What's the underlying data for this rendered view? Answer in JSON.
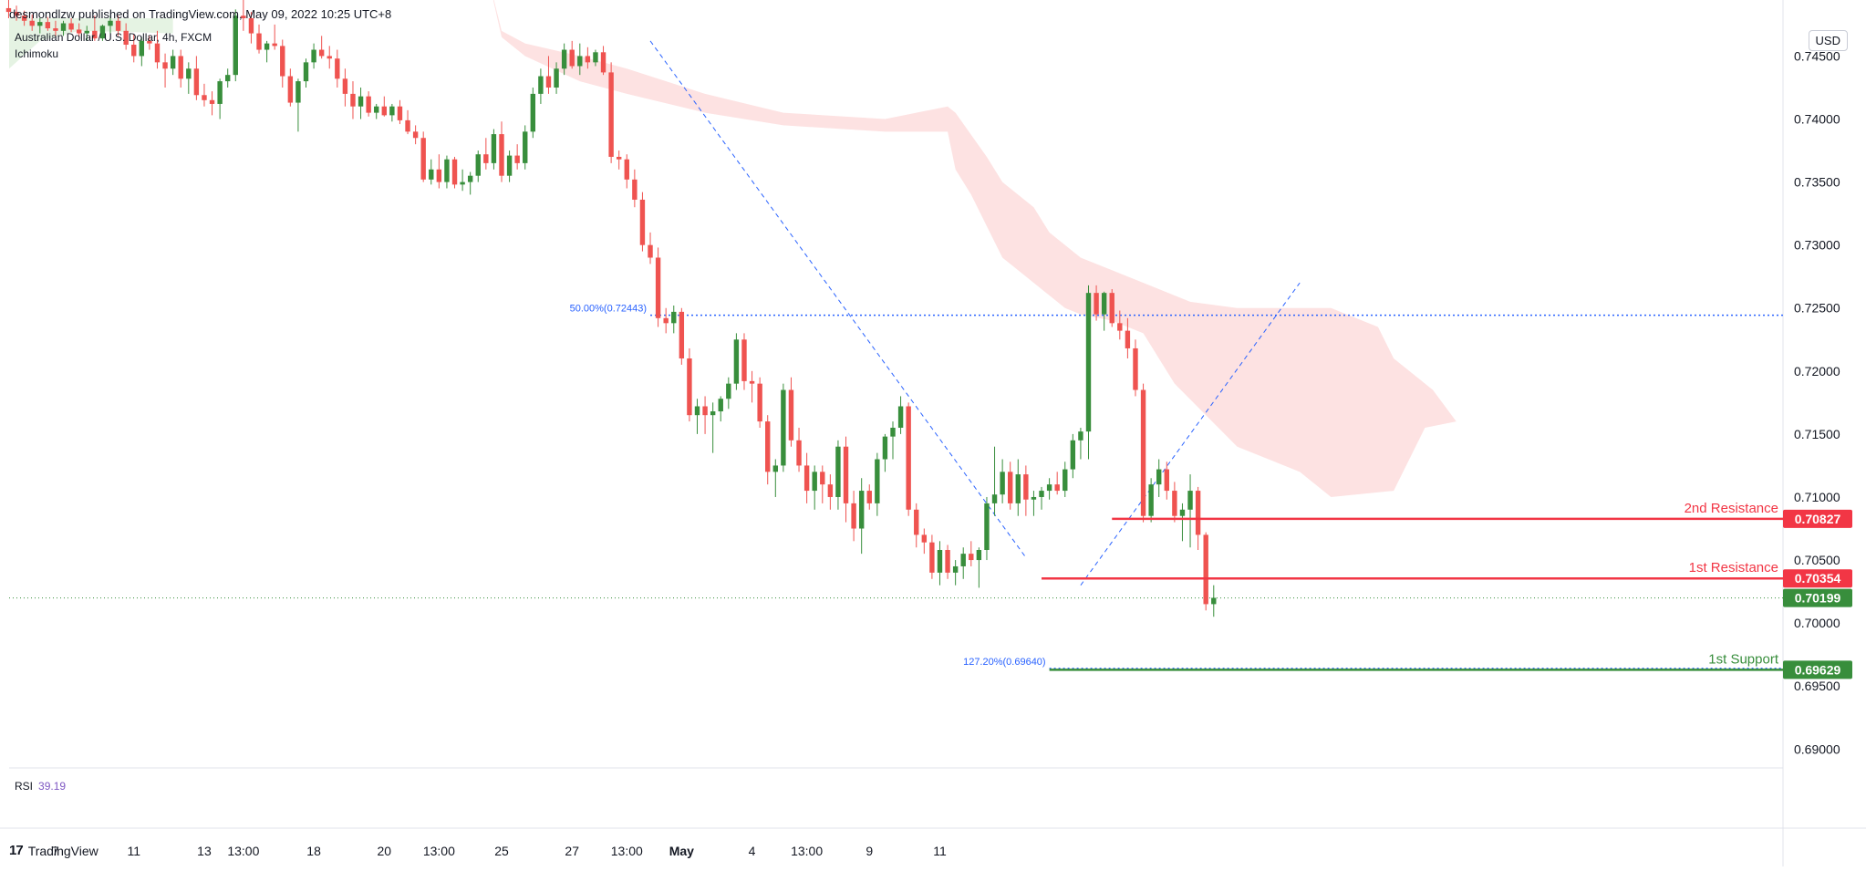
{
  "header": {
    "publisher": "desmondlzw published on TradingView.com, May 09, 2022 10:25 UTC+8"
  },
  "legend": {
    "symbol": "Australian Dollar / U.S. Dollar, 4h, FXCM",
    "indicator": "Ichimoku"
  },
  "rsi": {
    "label": "RSI",
    "value": "39.19"
  },
  "currency": "USD",
  "brand": {
    "logo": "17",
    "name": "TradingView"
  },
  "colors": {
    "bull": "#388e3c",
    "bear": "#ef5350",
    "cloud_bear": "#fde2e2",
    "cloud_bull": "#e5f3e3",
    "fib": "#2962ff",
    "resistance": "#f23645",
    "support": "#388e3c"
  },
  "chart_data": {
    "type": "candlestick",
    "title": "",
    "y_ticks": [
      "0.74500",
      "0.74000",
      "0.73500",
      "0.73000",
      "0.72500",
      "0.72000",
      "0.71500",
      "0.71000",
      "0.70500",
      "0.70000",
      "0.69500",
      "0.69000"
    ],
    "ylim": [
      0.6885,
      0.748
    ],
    "x_ticks": [
      {
        "label": "7",
        "i": 7
      },
      {
        "label": "11",
        "i": 17
      },
      {
        "label": "13",
        "i": 26
      },
      {
        "label": "13:00",
        "i": 31
      },
      {
        "label": "18",
        "i": 40
      },
      {
        "label": "20",
        "i": 49
      },
      {
        "label": "13:00",
        "i": 56
      },
      {
        "label": "25",
        "i": 64
      },
      {
        "label": "27",
        "i": 73
      },
      {
        "label": "13:00",
        "i": 80
      },
      {
        "label": "May",
        "i": 87
      },
      {
        "label": "4",
        "i": 96
      },
      {
        "label": "13:00",
        "i": 103
      },
      {
        "label": "9",
        "i": 111
      },
      {
        "label": "11",
        "i": 120
      }
    ],
    "candles": [
      [
        0.749,
        0.75,
        0.7482,
        0.7488
      ],
      [
        0.7488,
        0.7495,
        0.748,
        0.7485
      ],
      [
        0.7485,
        0.749,
        0.7478,
        0.7482
      ],
      [
        0.7482,
        0.7486,
        0.7474,
        0.7478
      ],
      [
        0.7478,
        0.7483,
        0.747,
        0.7474
      ],
      [
        0.7474,
        0.748,
        0.7468,
        0.7477
      ],
      [
        0.7477,
        0.7481,
        0.747,
        0.7472
      ],
      [
        0.7472,
        0.7478,
        0.7465,
        0.747
      ],
      [
        0.747,
        0.7478,
        0.7466,
        0.7476
      ],
      [
        0.7476,
        0.748,
        0.7469,
        0.7471
      ],
      [
        0.7471,
        0.7476,
        0.7465,
        0.7468
      ],
      [
        0.7468,
        0.7474,
        0.7462,
        0.747
      ],
      [
        0.747,
        0.7482,
        0.7462,
        0.7464
      ],
      [
        0.7464,
        0.7475,
        0.7462,
        0.7474
      ],
      [
        0.7474,
        0.7482,
        0.7468,
        0.7478
      ],
      [
        0.7478,
        0.7482,
        0.7466,
        0.747
      ],
      [
        0.747,
        0.7476,
        0.7455,
        0.7459
      ],
      [
        0.7459,
        0.7467,
        0.7445,
        0.745
      ],
      [
        0.745,
        0.7465,
        0.7442,
        0.7462
      ],
      [
        0.7462,
        0.7466,
        0.7455,
        0.746
      ],
      [
        0.746,
        0.747,
        0.744,
        0.7445
      ],
      [
        0.7445,
        0.7452,
        0.7425,
        0.744
      ],
      [
        0.744,
        0.7455,
        0.7435,
        0.745
      ],
      [
        0.745,
        0.7455,
        0.7425,
        0.7432
      ],
      [
        0.7432,
        0.7445,
        0.742,
        0.744
      ],
      [
        0.744,
        0.745,
        0.7415,
        0.7419
      ],
      [
        0.7419,
        0.7428,
        0.741,
        0.7415
      ],
      [
        0.7415,
        0.7422,
        0.7403,
        0.7412
      ],
      [
        0.7412,
        0.7432,
        0.74,
        0.743
      ],
      [
        0.743,
        0.744,
        0.7425,
        0.7435
      ],
      [
        0.7435,
        0.7487,
        0.743,
        0.7482
      ],
      [
        0.7482,
        0.75,
        0.747,
        0.748
      ],
      [
        0.748,
        0.7485,
        0.746,
        0.7468
      ],
      [
        0.7468,
        0.7475,
        0.7452,
        0.7455
      ],
      [
        0.7455,
        0.7462,
        0.7445,
        0.746
      ],
      [
        0.746,
        0.7475,
        0.7455,
        0.7458
      ],
      [
        0.7458,
        0.7463,
        0.7425,
        0.7434
      ],
      [
        0.7434,
        0.744,
        0.741,
        0.7413
      ],
      [
        0.7413,
        0.7432,
        0.739,
        0.743
      ],
      [
        0.743,
        0.7448,
        0.7425,
        0.7445
      ],
      [
        0.7445,
        0.746,
        0.744,
        0.7455
      ],
      [
        0.7455,
        0.7466,
        0.7448,
        0.745
      ],
      [
        0.745,
        0.7458,
        0.744,
        0.7448
      ],
      [
        0.7448,
        0.7455,
        0.7425,
        0.7432
      ],
      [
        0.7432,
        0.744,
        0.741,
        0.742
      ],
      [
        0.742,
        0.743,
        0.74,
        0.741
      ],
      [
        0.741,
        0.7425,
        0.74,
        0.7418
      ],
      [
        0.7418,
        0.7422,
        0.7402,
        0.7405
      ],
      [
        0.7405,
        0.7412,
        0.74,
        0.741
      ],
      [
        0.741,
        0.7418,
        0.7402,
        0.7403
      ],
      [
        0.7403,
        0.7412,
        0.7398,
        0.741
      ],
      [
        0.741,
        0.7415,
        0.7396,
        0.7399
      ],
      [
        0.7399,
        0.7407,
        0.7388,
        0.739
      ],
      [
        0.739,
        0.7395,
        0.738,
        0.7385
      ],
      [
        0.7385,
        0.739,
        0.735,
        0.7352
      ],
      [
        0.7352,
        0.7368,
        0.7348,
        0.736
      ],
      [
        0.736,
        0.7372,
        0.7345,
        0.735
      ],
      [
        0.735,
        0.7371,
        0.7345,
        0.7368
      ],
      [
        0.7368,
        0.737,
        0.7345,
        0.7348
      ],
      [
        0.7348,
        0.736,
        0.7343,
        0.735
      ],
      [
        0.735,
        0.7358,
        0.734,
        0.7355
      ],
      [
        0.7355,
        0.7375,
        0.735,
        0.7372
      ],
      [
        0.7372,
        0.7385,
        0.736,
        0.7365
      ],
      [
        0.7365,
        0.7392,
        0.736,
        0.7388
      ],
      [
        0.7388,
        0.7398,
        0.735,
        0.7355
      ],
      [
        0.7355,
        0.7375,
        0.735,
        0.7371
      ],
      [
        0.7371,
        0.738,
        0.736,
        0.7365
      ],
      [
        0.7365,
        0.7395,
        0.736,
        0.739
      ],
      [
        0.739,
        0.7425,
        0.7385,
        0.742
      ],
      [
        0.742,
        0.744,
        0.7412,
        0.7434
      ],
      [
        0.7434,
        0.745,
        0.742,
        0.7425
      ],
      [
        0.7425,
        0.7445,
        0.742,
        0.744
      ],
      [
        0.744,
        0.746,
        0.7435,
        0.7455
      ],
      [
        0.7455,
        0.7462,
        0.744,
        0.7442
      ],
      [
        0.7442,
        0.746,
        0.7435,
        0.745
      ],
      [
        0.745,
        0.7457,
        0.744,
        0.7445
      ],
      [
        0.7445,
        0.7455,
        0.7442,
        0.7453
      ],
      [
        0.7453,
        0.7458,
        0.7435,
        0.7437
      ],
      [
        0.7437,
        0.7445,
        0.7365,
        0.737
      ],
      [
        0.737,
        0.7375,
        0.736,
        0.7368
      ],
      [
        0.7368,
        0.7372,
        0.7345,
        0.7352
      ],
      [
        0.7352,
        0.736,
        0.733,
        0.7336
      ],
      [
        0.7336,
        0.7342,
        0.7295,
        0.73
      ],
      [
        0.73,
        0.731,
        0.7285,
        0.729
      ],
      [
        0.729,
        0.7298,
        0.7235,
        0.7242
      ],
      [
        0.7242,
        0.725,
        0.723,
        0.7238
      ],
      [
        0.7238,
        0.7252,
        0.723,
        0.7247
      ],
      [
        0.7247,
        0.725,
        0.7205,
        0.721
      ],
      [
        0.721,
        0.7218,
        0.716,
        0.7165
      ],
      [
        0.7165,
        0.7178,
        0.715,
        0.7172
      ],
      [
        0.7172,
        0.718,
        0.715,
        0.7165
      ],
      [
        0.7165,
        0.7175,
        0.7135,
        0.7168
      ]
    ],
    "candles_b": [
      [
        0.7168,
        0.718,
        0.716,
        0.7178
      ],
      [
        0.7178,
        0.7195,
        0.717,
        0.719
      ],
      [
        0.719,
        0.723,
        0.7185,
        0.7225
      ],
      [
        0.7225,
        0.723,
        0.7185,
        0.7192
      ],
      [
        0.7192,
        0.72,
        0.7175,
        0.719
      ],
      [
        0.719,
        0.7195,
        0.7155,
        0.716
      ],
      [
        0.716,
        0.7165,
        0.711,
        0.712
      ],
      [
        0.712,
        0.713,
        0.71,
        0.7125
      ],
      [
        0.7125,
        0.719,
        0.712,
        0.7185
      ],
      [
        0.7185,
        0.7195,
        0.714,
        0.7145
      ],
      [
        0.7145,
        0.7155,
        0.712,
        0.7125
      ],
      [
        0.7125,
        0.7135,
        0.7095,
        0.7105
      ],
      [
        0.7105,
        0.7125,
        0.709,
        0.712
      ],
      [
        0.712,
        0.7125,
        0.7095,
        0.711
      ],
      [
        0.711,
        0.7118,
        0.709,
        0.71
      ],
      [
        0.71,
        0.7145,
        0.709,
        0.714
      ],
      [
        0.714,
        0.7148,
        0.708,
        0.7095
      ],
      [
        0.7095,
        0.7105,
        0.7065,
        0.7075
      ],
      [
        0.7075,
        0.7115,
        0.7055,
        0.7105
      ],
      [
        0.7105,
        0.711,
        0.709,
        0.7095
      ],
      [
        0.7095,
        0.7135,
        0.7085,
        0.713
      ],
      [
        0.713,
        0.715,
        0.712,
        0.7148
      ],
      [
        0.7148,
        0.716,
        0.713,
        0.7155
      ],
      [
        0.7155,
        0.718,
        0.715,
        0.7172
      ],
      [
        0.7172,
        0.7175,
        0.7085,
        0.709
      ],
      [
        0.709,
        0.7095,
        0.706,
        0.707
      ],
      [
        0.707,
        0.7075,
        0.7055,
        0.7064
      ],
      [
        0.7064,
        0.707,
        0.7035,
        0.704
      ],
      [
        0.704,
        0.7065,
        0.703,
        0.7058
      ],
      [
        0.7058,
        0.7062,
        0.7035,
        0.704
      ],
      [
        0.704,
        0.705,
        0.703,
        0.7045
      ],
      [
        0.7045,
        0.706,
        0.7035,
        0.7055
      ],
      [
        0.7055,
        0.7065,
        0.7045,
        0.705
      ],
      [
        0.705,
        0.706,
        0.7028,
        0.7058
      ],
      [
        0.7058,
        0.71,
        0.705,
        0.7095
      ],
      [
        0.7095,
        0.714,
        0.7085,
        0.7102
      ],
      [
        0.7102,
        0.713,
        0.7095,
        0.712
      ],
      [
        0.712,
        0.7128,
        0.709,
        0.7095
      ],
      [
        0.7095,
        0.713,
        0.7085,
        0.7118
      ],
      [
        0.7118,
        0.7125,
        0.7085,
        0.7098
      ],
      [
        0.7098,
        0.7105,
        0.7085,
        0.71
      ],
      [
        0.71,
        0.7108,
        0.709,
        0.7105
      ],
      [
        0.7105,
        0.7115,
        0.7098,
        0.711
      ],
      [
        0.711,
        0.712,
        0.7102,
        0.7105
      ],
      [
        0.7105,
        0.7128,
        0.71,
        0.7122
      ],
      [
        0.7122,
        0.715,
        0.7115,
        0.7145
      ],
      [
        0.7145,
        0.7155,
        0.713,
        0.7152
      ],
      [
        0.7152,
        0.7268,
        0.713,
        0.7262
      ],
      [
        0.7262,
        0.7268,
        0.724,
        0.7245
      ],
      [
        0.7245,
        0.7263,
        0.7232,
        0.7262
      ],
      [
        0.7262,
        0.7265,
        0.7235,
        0.7238
      ],
      [
        0.7238,
        0.7248,
        0.7225,
        0.7232
      ],
      [
        0.7232,
        0.7242,
        0.721,
        0.7218
      ],
      [
        0.7218,
        0.7225,
        0.718,
        0.7185
      ],
      [
        0.7185,
        0.719,
        0.708,
        0.7085
      ],
      [
        0.7085,
        0.7115,
        0.708,
        0.711
      ],
      [
        0.711,
        0.713,
        0.71,
        0.7122
      ],
      [
        0.7122,
        0.7128,
        0.7098,
        0.7105
      ],
      [
        0.7105,
        0.7112,
        0.708,
        0.7085
      ],
      [
        0.7085,
        0.7095,
        0.7065,
        0.709
      ],
      [
        0.709,
        0.7118,
        0.706,
        0.7105
      ],
      [
        0.7105,
        0.7108,
        0.7058,
        0.707
      ],
      [
        0.707,
        0.7072,
        0.701,
        0.7015
      ],
      [
        0.7015,
        0.703,
        0.7005,
        0.702
      ]
    ],
    "ichimoku_cloud": {
      "bear_upper": [
        [
          62,
          0.752
        ],
        [
          64,
          0.747
        ],
        [
          67,
          0.746
        ],
        [
          74,
          0.745
        ],
        [
          80,
          0.744
        ],
        [
          90,
          0.742
        ],
        [
          100,
          0.7405
        ],
        [
          113,
          0.74
        ],
        [
          121,
          0.741
        ],
        [
          122,
          0.7405
        ],
        [
          126,
          0.737
        ],
        [
          128,
          0.735
        ],
        [
          132,
          0.733
        ],
        [
          134,
          0.731
        ],
        [
          138,
          0.729
        ],
        [
          142,
          0.728
        ],
        [
          148,
          0.7265
        ],
        [
          152,
          0.7255
        ],
        [
          158,
          0.725
        ],
        [
          170,
          0.725
        ],
        [
          176,
          0.7235
        ],
        [
          178,
          0.721
        ],
        [
          183,
          0.7185
        ],
        [
          186,
          0.716
        ]
      ],
      "bear_lower": [
        [
          186,
          0.716
        ],
        [
          182,
          0.7155
        ],
        [
          178,
          0.7105
        ],
        [
          170,
          0.71
        ],
        [
          166,
          0.712
        ],
        [
          158,
          0.714
        ],
        [
          150,
          0.719
        ],
        [
          146,
          0.723
        ],
        [
          142,
          0.724
        ],
        [
          138,
          0.7245
        ],
        [
          136,
          0.725
        ],
        [
          134,
          0.726
        ],
        [
          130,
          0.728
        ],
        [
          128,
          0.729
        ],
        [
          126,
          0.7315
        ],
        [
          124,
          0.734
        ],
        [
          122,
          0.736
        ],
        [
          121,
          0.739
        ],
        [
          113,
          0.739
        ],
        [
          100,
          0.7395
        ],
        [
          90,
          0.7405
        ],
        [
          80,
          0.742
        ],
        [
          74,
          0.743
        ],
        [
          67,
          0.745
        ],
        [
          64,
          0.7465
        ],
        [
          62,
          0.752
        ]
      ],
      "bull_upper": [
        [
          0,
          0.748
        ],
        [
          22,
          0.748
        ]
      ],
      "bull_lower": [
        [
          22,
          0.7468
        ],
        [
          17,
          0.7469
        ],
        [
          10,
          0.747
        ],
        [
          5,
          0.7462
        ],
        [
          1,
          0.744
        ],
        [
          0,
          0.744
        ]
      ]
    },
    "levels": [
      {
        "name": "2nd Resistance",
        "value": 0.70827,
        "label": "0.70827",
        "from": 142
      },
      {
        "name": "1st Resistance",
        "value": 0.70354,
        "label": "0.70354",
        "from": 133
      },
      {
        "name": "1st Support",
        "value": 0.69629,
        "label": "0.69629",
        "from": 134
      }
    ],
    "fib_levels": [
      {
        "label": "50.00%(0.72443)",
        "value": 0.72443,
        "from": 83
      },
      {
        "label": "127.20%(0.69640)",
        "value": 0.6964,
        "from": 134
      }
    ],
    "trendlines": [
      {
        "from": [
          83,
          0.7462
        ],
        "to": [
          131,
          0.7052
        ]
      },
      {
        "from": [
          138,
          0.703
        ],
        "to": [
          166,
          0.727
        ]
      }
    ],
    "last_price": {
      "value": 0.70199,
      "label": "0.70199"
    }
  }
}
